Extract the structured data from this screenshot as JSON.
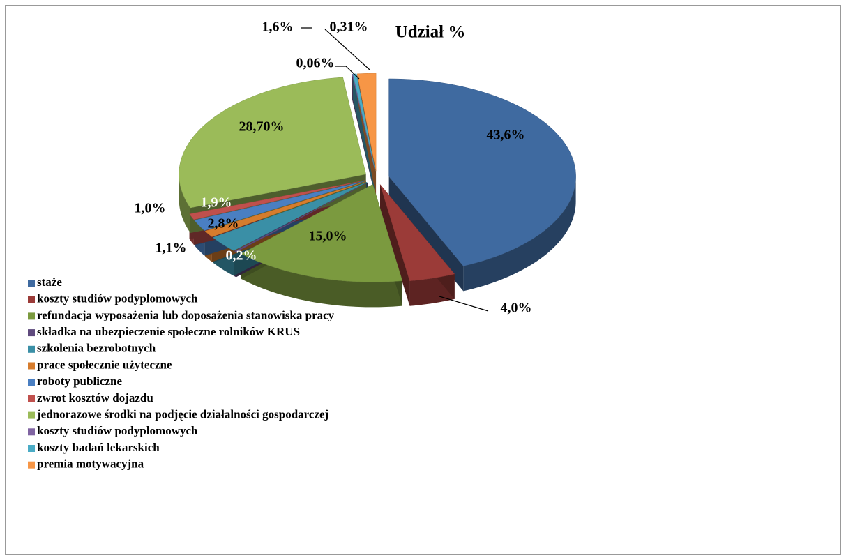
{
  "chart_data": {
    "type": "pie3d",
    "title": "Udział %",
    "categories": [
      "staże",
      "koszty studiów podyplomowych",
      "refundacja wyposażenia lub doposażenia stanowiska pracy",
      "składka na ubezpieczenie społeczne rolników KRUS",
      "szkolenia bezrobotnych",
      "prace społecznie użyteczne",
      "roboty publiczne",
      "zwrot kosztów dojazdu",
      "jednorazowe środki na podjęcie działalności gospodarczej",
      "koszty studiów podyplomowych",
      "koszty badań lekarskich",
      "premia motywacyjna"
    ],
    "values": [
      43.6,
      4.0,
      15.0,
      0.2,
      2.8,
      1.1,
      1.9,
      1.0,
      28.7,
      0.06,
      0.31,
      1.6
    ],
    "value_labels": [
      "43,6%",
      "4,0%",
      "15,0%",
      "0,2%",
      "2,8%",
      "1,1%",
      "1,9%",
      "1,0%",
      "28,70%",
      "0,06%",
      "0,31%",
      "1,6%"
    ],
    "colors": [
      "#3f6aa0",
      "#9b3b38",
      "#7b9a3f",
      "#5f4a7d",
      "#3a8fa6",
      "#d67c2d",
      "#4a7fc2",
      "#c0504d",
      "#9bbb59",
      "#8064a2",
      "#4bacc6",
      "#f79646"
    ],
    "legend": "bottom-left"
  }
}
